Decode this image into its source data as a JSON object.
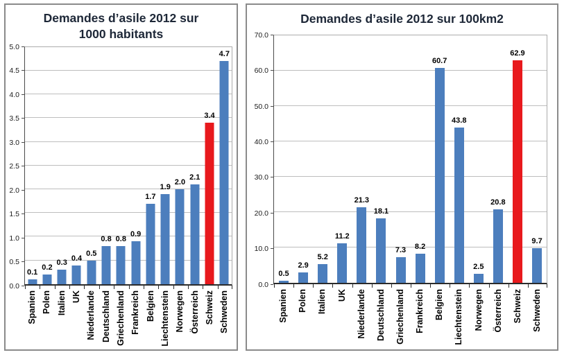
{
  "window": {
    "background": "#ffffff"
  },
  "colors": {
    "bar_blue": "#4c7ebd",
    "bar_red": "#e8191d",
    "gridline": "#bdbdbd",
    "axis_line": "#2b2b2b",
    "plot_border": "#ababab",
    "title_text": "#1d2737",
    "panel_border": "#8a8a8a",
    "tick_text": "#1a1a1a",
    "value_label_text": "#000000"
  },
  "chart_data": [
    {
      "type": "bar",
      "title": "Demandes d’asile 2012 sur 1000 habitants",
      "title_lines": [
        "Demandes d’asile 2012 sur",
        "1000 habitants"
      ],
      "xlabel": "",
      "ylabel": "",
      "categories": [
        "Spanien",
        "Polen",
        "Italien",
        "UK",
        "Niederlande",
        "Deutschland",
        "Griechenland",
        "Frankreich",
        "Belgien",
        "Liechtenstein",
        "Norwegen",
        "Österreich",
        "Schweiz",
        "Schweden"
      ],
      "values": [
        0.1,
        0.2,
        0.3,
        0.4,
        0.5,
        0.8,
        0.8,
        0.9,
        1.7,
        1.9,
        2.0,
        2.1,
        3.4,
        4.7
      ],
      "bar_labels": [
        "0.1",
        "0.2",
        "0.3",
        "0.4",
        "0.5",
        "0.8",
        "0.8",
        "0.9",
        "1.7",
        "1.9",
        "2.0",
        "2.1",
        "3.4",
        "4.7"
      ],
      "highlight_index": 12,
      "highlight_category": "Schweiz",
      "ylim": [
        0,
        5.0
      ],
      "yticks": [
        "0.0",
        "0.5",
        "1.0",
        "1.5",
        "2.0",
        "2.5",
        "3.0",
        "3.5",
        "4.0",
        "4.5",
        "5.0"
      ],
      "grid": true,
      "legend": "none"
    },
    {
      "type": "bar",
      "title": "Demandes d’asile 2012 sur 100km2",
      "title_lines": [
        "Demandes d’asile 2012 sur 100km2"
      ],
      "xlabel": "",
      "ylabel": "",
      "categories": [
        "Spanien",
        "Polen",
        "Italien",
        "UK",
        "Niederlande",
        "Deutschland",
        "Griechenland",
        "Frankreich",
        "Belgien",
        "Liechtenstein",
        "Norwegen",
        "Österreich",
        "Schweiz",
        "Schweden"
      ],
      "values": [
        0.5,
        2.9,
        5.2,
        11.2,
        21.3,
        18.1,
        7.3,
        8.2,
        60.7,
        43.8,
        2.5,
        20.8,
        62.9,
        9.7
      ],
      "bar_labels": [
        "0.5",
        "2.9",
        "5.2",
        "11.2",
        "21.3",
        "18.1",
        "7.3",
        "8.2",
        "60.7",
        "43.8",
        "2.5",
        "20.8",
        "62.9",
        "9.7"
      ],
      "highlight_index": 12,
      "highlight_category": "Schweiz",
      "ylim": [
        0,
        70.0
      ],
      "yticks": [
        "0.0",
        "10.0",
        "20.0",
        "30.0",
        "40.0",
        "50.0",
        "60.0",
        "70.0"
      ],
      "grid": true,
      "legend": "none"
    }
  ]
}
